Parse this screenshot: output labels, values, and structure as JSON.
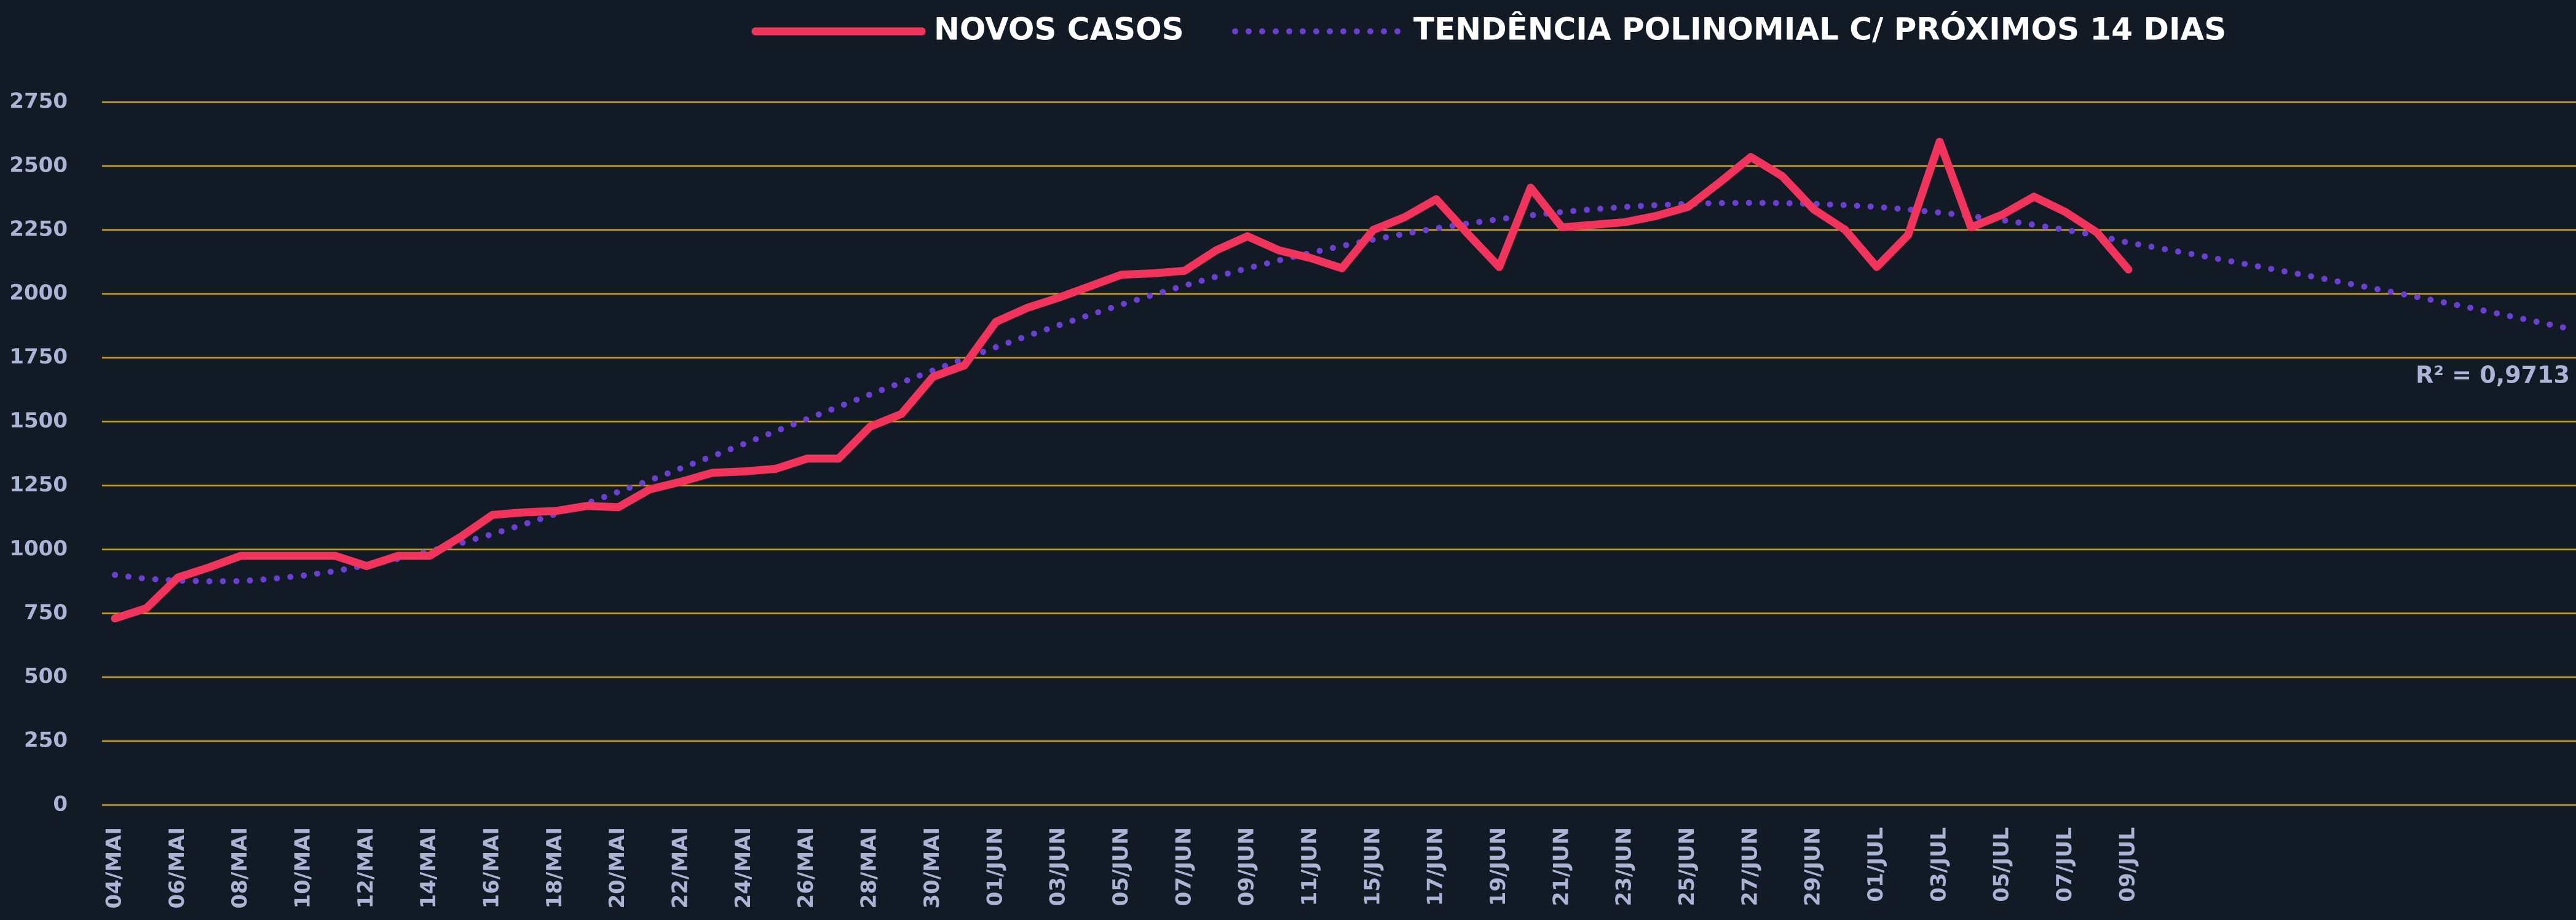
{
  "chart_data": {
    "type": "line",
    "categories": [
      "04/MAI",
      null,
      "06/MAI",
      null,
      "08/MAI",
      null,
      "10/MAI",
      null,
      "12/MAI",
      null,
      "14/MAI",
      null,
      "16/MAI",
      null,
      "18/MAI",
      null,
      "20/MAI",
      null,
      "22/MAI",
      null,
      "24/MAI",
      null,
      "26/MAI",
      null,
      "28/MAI",
      null,
      "30/MAI",
      null,
      "01/JUN",
      null,
      "03/JUN",
      null,
      "05/JUN",
      null,
      "07/JUN",
      null,
      "09/JUN",
      null,
      "11/JUN",
      null,
      "15/JUN",
      null,
      "17/JUN",
      null,
      "19/JUN",
      null,
      "21/JUN",
      null,
      "23/JUN",
      null,
      "25/JUN",
      null,
      "27/JUN",
      null,
      "29/JUN",
      null,
      "01/JUL",
      null,
      "03/JUL",
      null,
      "05/JUL",
      null,
      "07/JUL",
      null,
      "09/JUL",
      null,
      null,
      null,
      null,
      null,
      null,
      null,
      null,
      null,
      null,
      null,
      null,
      null,
      null
    ],
    "series": [
      {
        "name": "NOVOS CASOS",
        "color": "#f2335b",
        "line_style": "solid",
        "values": [
          730,
          770,
          890,
          930,
          975,
          975,
          975,
          975,
          935,
          975,
          975,
          1050,
          1135,
          1145,
          1150,
          1170,
          1165,
          1235,
          1265,
          1300,
          1305,
          1315,
          1355,
          1355,
          1480,
          1530,
          1675,
          1720,
          1890,
          1945,
          1985,
          2030,
          2075,
          2080,
          2090,
          2170,
          2225,
          2170,
          2140,
          2100,
          2250,
          2300,
          2370,
          2235,
          2105,
          2415,
          2260,
          2270,
          2280,
          2305,
          2340,
          2435,
          2535,
          2460,
          2330,
          2250,
          2105,
          2230,
          2595,
          2260,
          2310,
          2380,
          2320,
          2240,
          2095,
          null,
          null,
          null,
          null,
          null,
          null,
          null,
          null,
          null,
          null,
          null,
          null,
          null,
          null
        ]
      },
      {
        "name": "TENDÊNCIA POLINOMIAL C/ PRÓXIMOS 14 DIAS",
        "color": "#6b3fd4",
        "line_style": "dotted",
        "values": [
          900,
          885,
          878,
          875,
          876,
          885,
          898,
          915,
          938,
          963,
          993,
          1025,
          1060,
          1098,
          1138,
          1180,
          1225,
          1270,
          1318,
          1365,
          1413,
          1462,
          1510,
          1558,
          1606,
          1653,
          1700,
          1746,
          1791,
          1835,
          1877,
          1918,
          1958,
          1996,
          2032,
          2067,
          2100,
          2131,
          2160,
          2187,
          2212,
          2235,
          2256,
          2275,
          2292,
          2307,
          2320,
          2331,
          2340,
          2347,
          2352,
          2355,
          2356,
          2355,
          2352,
          2347,
          2340,
          2330,
          2318,
          2304,
          2288,
          2270,
          2250,
          2228,
          2200,
          2178,
          2156,
          2133,
          2110,
          2087,
          2064,
          2040,
          2016,
          1992,
          1967,
          1942,
          1916,
          1890,
          1864
        ]
      }
    ],
    "ylim": [
      0,
      2750
    ],
    "yticks": [
      0,
      250,
      500,
      750,
      1000,
      1250,
      1500,
      1750,
      2000,
      2250,
      2500,
      2750
    ],
    "grid": true,
    "grid_color": "#c9a227",
    "legend": "top",
    "annotation": "R² = 0,9713"
  }
}
